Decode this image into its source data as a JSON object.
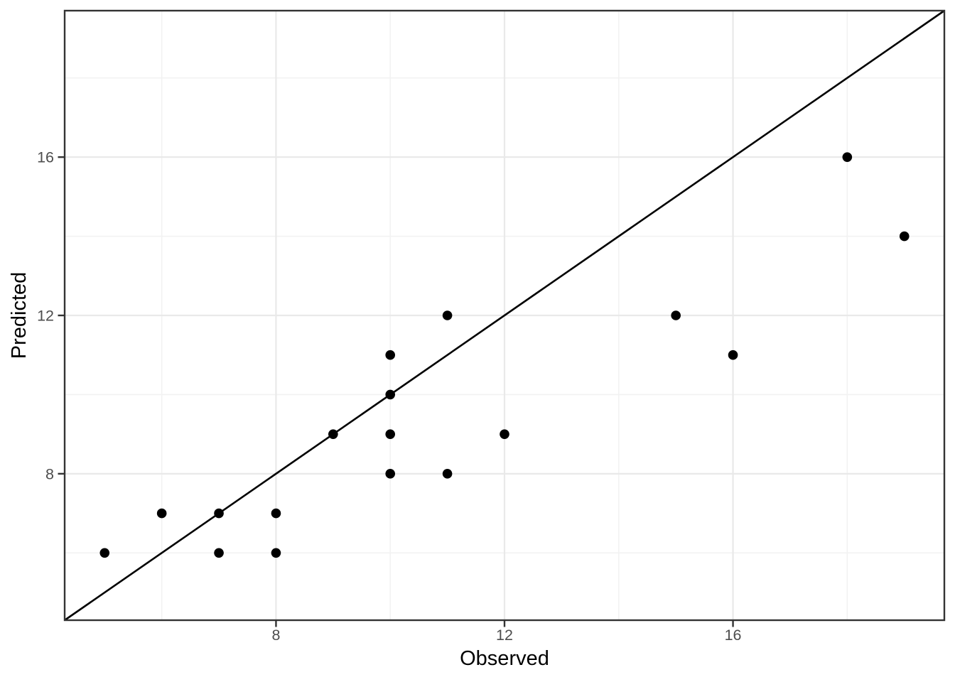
{
  "chart_data": {
    "type": "scatter",
    "title": "",
    "xlabel": "Observed",
    "ylabel": "Predicted",
    "xlim": [
      4.3,
      19.7
    ],
    "ylim": [
      4.3,
      19.7
    ],
    "grid": "major+minor",
    "legend_position": "none",
    "x_ticks": [
      {
        "value": 8,
        "label": "8"
      },
      {
        "value": 12,
        "label": "12"
      },
      {
        "value": 16,
        "label": "16"
      }
    ],
    "y_ticks": [
      {
        "value": 8,
        "label": "8"
      },
      {
        "value": 12,
        "label": "12"
      },
      {
        "value": 16,
        "label": "16"
      }
    ],
    "x_minor_gridlines": [
      6,
      10,
      14,
      18
    ],
    "y_minor_gridlines": [
      6,
      10,
      14,
      18
    ],
    "points": [
      {
        "observed": 5,
        "predicted": 6
      },
      {
        "observed": 6,
        "predicted": 7
      },
      {
        "observed": 7,
        "predicted": 6
      },
      {
        "observed": 7,
        "predicted": 7
      },
      {
        "observed": 8,
        "predicted": 6
      },
      {
        "observed": 8,
        "predicted": 7
      },
      {
        "observed": 9,
        "predicted": 9
      },
      {
        "observed": 10,
        "predicted": 8
      },
      {
        "observed": 10,
        "predicted": 9
      },
      {
        "observed": 10,
        "predicted": 10
      },
      {
        "observed": 10,
        "predicted": 11
      },
      {
        "observed": 11,
        "predicted": 8
      },
      {
        "observed": 11,
        "predicted": 12
      },
      {
        "observed": 12,
        "predicted": 9
      },
      {
        "observed": 15,
        "predicted": 12
      },
      {
        "observed": 16,
        "predicted": 11
      },
      {
        "observed": 18,
        "predicted": 16
      },
      {
        "observed": 19,
        "predicted": 14
      }
    ],
    "reference_line": {
      "equation": "y = x",
      "x1": 4.3,
      "y1": 4.3,
      "x2": 19.7,
      "y2": 19.7
    },
    "colors": {
      "background": "#ffffff",
      "panel_background": "#ffffff",
      "panel_border": "#333333",
      "grid_major": "#e9e9e9",
      "grid_minor": "#f2f2f2",
      "tick_mark": "#333333",
      "tick_label": "#4d4d4d",
      "axis_title": "#000000",
      "point": "#000000",
      "reference_line": "#000000"
    }
  }
}
